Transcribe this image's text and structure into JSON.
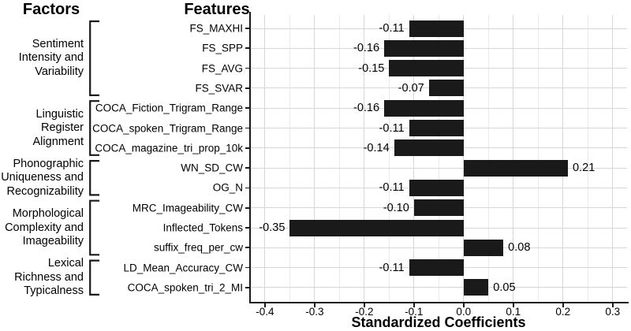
{
  "headers": {
    "factors": "Factors",
    "features": "Features"
  },
  "chart_data": {
    "type": "bar",
    "orientation": "horizontal",
    "title": "",
    "xlabel": "Standardized Coefficients",
    "ylabel": "",
    "categories": [
      "FS_MAXHI",
      "FS_SPP",
      "FS_AVG",
      "FS_SVAR",
      "COCA_Fiction_Trigram_Range",
      "COCA_spoken_Trigram_Range",
      "COCA_magazine_tri_prop_10k",
      "WN_SD_CW",
      "OG_N",
      "MRC_Imageability_CW",
      "Inflected_Tokens",
      "suffix_freq_per_cw",
      "LD_Mean_Accuracy_CW",
      "COCA_spoken_tri_2_MI"
    ],
    "values": [
      -0.11,
      -0.16,
      -0.15,
      -0.07,
      -0.16,
      -0.11,
      -0.14,
      0.21,
      -0.11,
      -0.1,
      -0.35,
      0.08,
      -0.11,
      0.05
    ],
    "value_labels": [
      "-0.11",
      "-0.16",
      "-0.15",
      "-0.07",
      "-0.16",
      "-0.11",
      "-0.14",
      "0.21",
      "-0.11",
      "-0.10",
      "-0.35",
      "0.08",
      "-0.11",
      "0.05"
    ],
    "xlim": [
      -0.43,
      0.329
    ],
    "x_ticks": [
      -0.4,
      -0.3,
      -0.2,
      -0.1,
      0.0,
      0.1,
      0.2,
      0.3
    ],
    "x_tick_labels": [
      "-0.4",
      "-0.3",
      "-0.2",
      "-0.1",
      "0.0",
      "0.1",
      "0.2",
      "0.3"
    ],
    "grid": "vertical major every 0.1, vertical minor every 0.05, horizontal at each category; no legend",
    "legend": "none",
    "bar_color": "#1a1a1a",
    "axis_color": "#1a1a1a",
    "grid_major_color": "#d7d7d7",
    "grid_minor_color": "#e9e9e9",
    "factor_groups": [
      {
        "label_lines": [
          "Sentiment",
          "Intensity and",
          "Variability"
        ],
        "first_row": 0,
        "last_row": 3
      },
      {
        "label_lines": [
          "Linguistic",
          "Register",
          "Alignment"
        ],
        "first_row": 4,
        "last_row": 6
      },
      {
        "label_lines": [
          "Phonographic",
          "Uniqueness and",
          "Recognizability"
        ],
        "first_row": 7,
        "last_row": 8
      },
      {
        "label_lines": [
          "Morphological",
          "Complexity and",
          "Imageability"
        ],
        "first_row": 9,
        "last_row": 11
      },
      {
        "label_lines": [
          "Lexical",
          "Richness and",
          "Typicalness"
        ],
        "first_row": 12,
        "last_row": 13
      }
    ]
  }
}
